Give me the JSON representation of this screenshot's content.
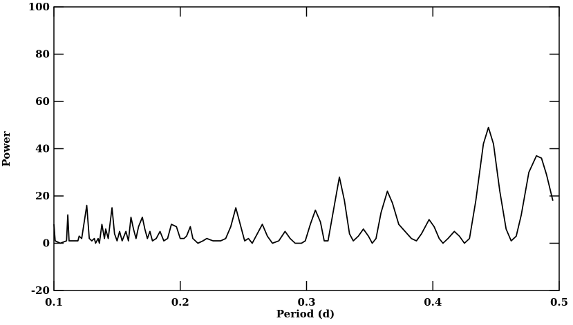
{
  "chart_data": {
    "type": "line",
    "xlabel": "Period (d)",
    "ylabel": "Power",
    "x": [
      0.1,
      0.101,
      0.105,
      0.11,
      0.111,
      0.112,
      0.116,
      0.119,
      0.12,
      0.122,
      0.126,
      0.128,
      0.13,
      0.132,
      0.133,
      0.135,
      0.136,
      0.138,
      0.14,
      0.141,
      0.143,
      0.146,
      0.148,
      0.15,
      0.152,
      0.154,
      0.157,
      0.159,
      0.161,
      0.163,
      0.165,
      0.167,
      0.17,
      0.172,
      0.174,
      0.176,
      0.178,
      0.181,
      0.184,
      0.187,
      0.19,
      0.193,
      0.197,
      0.2,
      0.203,
      0.205,
      0.208,
      0.21,
      0.214,
      0.218,
      0.221,
      0.226,
      0.232,
      0.236,
      0.24,
      0.244,
      0.248,
      0.251,
      0.254,
      0.257,
      0.261,
      0.265,
      0.269,
      0.273,
      0.278,
      0.283,
      0.287,
      0.291,
      0.296,
      0.299,
      0.303,
      0.307,
      0.311,
      0.314,
      0.317,
      0.321,
      0.326,
      0.33,
      0.334,
      0.337,
      0.341,
      0.345,
      0.349,
      0.352,
      0.355,
      0.359,
      0.364,
      0.368,
      0.373,
      0.378,
      0.383,
      0.387,
      0.391,
      0.397,
      0.401,
      0.405,
      0.408,
      0.412,
      0.417,
      0.421,
      0.425,
      0.429,
      0.434,
      0.44,
      0.444,
      0.448,
      0.453,
      0.458,
      0.462,
      0.466,
      0.47,
      0.476,
      0.482,
      0.486,
      0.49,
      0.495
    ],
    "series": [
      {
        "color": "#000000",
        "values": [
          8,
          1,
          0,
          1,
          12,
          1,
          1,
          1,
          3,
          2,
          16,
          2,
          1,
          2,
          0,
          2,
          0,
          8,
          2,
          6,
          2,
          15,
          4,
          1,
          5,
          1,
          5,
          1,
          11,
          6,
          2,
          7,
          11,
          6,
          2,
          5,
          1,
          2,
          5,
          1,
          2,
          8,
          7,
          2,
          2,
          3,
          7,
          2,
          0,
          1,
          2,
          1,
          1,
          2,
          7,
          15,
          7,
          1,
          2,
          0,
          4,
          8,
          3,
          0,
          1,
          5,
          2,
          0,
          0,
          1,
          8,
          14,
          9,
          1,
          1,
          13,
          28,
          18,
          4,
          1,
          3,
          6,
          3,
          0,
          2,
          13,
          22,
          17,
          8,
          5,
          2,
          1,
          4,
          10,
          7,
          2,
          0,
          2,
          5,
          3,
          0,
          2,
          18,
          42,
          49,
          42,
          22,
          6,
          1,
          3,
          12,
          30,
          37,
          36,
          29,
          18
        ]
      }
    ],
    "xlim": [
      0.1,
      0.5
    ],
    "xticks": [
      0.1,
      0.2,
      0.3,
      0.4,
      0.5
    ],
    "ylim": [
      -20,
      100
    ],
    "yticks": [
      -20,
      0,
      20,
      40,
      60,
      80,
      100
    ]
  }
}
